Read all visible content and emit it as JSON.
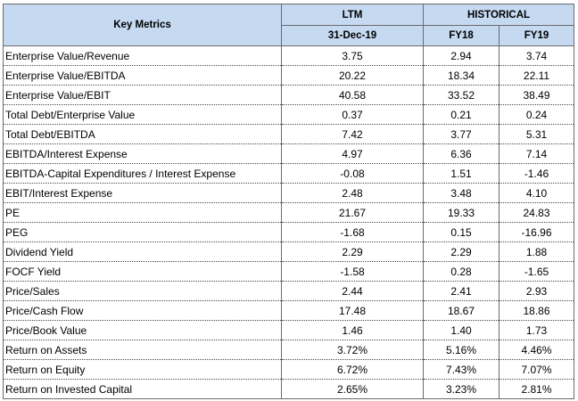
{
  "header": {
    "key_metrics": "Key Metrics",
    "ltm": "LTM",
    "historical": "HISTORICAL",
    "ltm_date": "31-Dec-19",
    "fy18": "FY18",
    "fy19": "FY19"
  },
  "colors": {
    "header_fill": "#c5d9f1",
    "grid": "#6b6b6b"
  },
  "rows": [
    {
      "metric": "Enterprise Value/Revenue",
      "ltm": "3.75",
      "fy18": "2.94",
      "fy19": "3.74"
    },
    {
      "metric": "Enterprise Value/EBITDA",
      "ltm": "20.22",
      "fy18": "18.34",
      "fy19": "22.11"
    },
    {
      "metric": "Enterprise Value/EBIT",
      "ltm": "40.58",
      "fy18": "33.52",
      "fy19": "38.49"
    },
    {
      "metric": "Total Debt/Enterprise Value",
      "ltm": "0.37",
      "fy18": "0.21",
      "fy19": "0.24"
    },
    {
      "metric": "Total Debt/EBITDA",
      "ltm": "7.42",
      "fy18": "3.77",
      "fy19": "5.31"
    },
    {
      "metric": "EBITDA/Interest Expense",
      "ltm": "4.97",
      "fy18": "6.36",
      "fy19": "7.14"
    },
    {
      "metric": "EBITDA-Capital Expenditures / Interest Expense",
      "ltm": "-0.08",
      "fy18": "1.51",
      "fy19": "-1.46"
    },
    {
      "metric": "EBIT/Interest Expense",
      "ltm": "2.48",
      "fy18": "3.48",
      "fy19": "4.10"
    },
    {
      "metric": "PE",
      "ltm": "21.67",
      "fy18": "19.33",
      "fy19": "24.83"
    },
    {
      "metric": "PEG",
      "ltm": "-1.68",
      "fy18": "0.15",
      "fy19": "-16.96"
    },
    {
      "metric": "Dividend Yield",
      "ltm": "2.29",
      "fy18": "2.29",
      "fy19": "1.88"
    },
    {
      "metric": "FOCF Yield",
      "ltm": "-1.58",
      "fy18": "0.28",
      "fy19": "-1.65"
    },
    {
      "metric": "Price/Sales",
      "ltm": "2.44",
      "fy18": "2.41",
      "fy19": "2.93"
    },
    {
      "metric": "Price/Cash Flow",
      "ltm": "17.48",
      "fy18": "18.67",
      "fy19": "18.86"
    },
    {
      "metric": "Price/Book Value",
      "ltm": "1.46",
      "fy18": "1.40",
      "fy19": "1.73"
    },
    {
      "metric": "Return on Assets",
      "ltm": "3.72%",
      "fy18": "5.16%",
      "fy19": "4.46%"
    },
    {
      "metric": "Return on Equity",
      "ltm": "6.72%",
      "fy18": "7.43%",
      "fy19": "7.07%"
    },
    {
      "metric": "Return on Invested Capital",
      "ltm": "2.65%",
      "fy18": "3.23%",
      "fy19": "2.81%"
    }
  ]
}
